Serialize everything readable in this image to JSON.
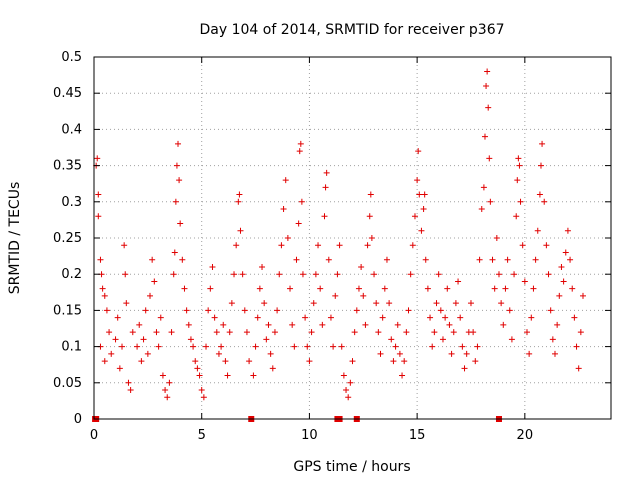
{
  "chart_data": {
    "type": "scatter",
    "title": "Day 104 of 2014, SRMTID for receiver p367",
    "xlabel": "GPS time / hours",
    "ylabel": "SRMTID / TECUs",
    "xlim": [
      0,
      24
    ],
    "ylim": [
      0,
      0.5
    ],
    "xticks": [
      0,
      5,
      10,
      15,
      20
    ],
    "yticks": [
      0,
      0.05,
      0.1,
      0.15,
      0.2,
      0.25,
      0.3,
      0.35,
      0.4,
      0.45,
      0.5
    ],
    "ytick_labels": [
      "0",
      "0.05",
      "0.1",
      "0.15",
      "0.2",
      "0.25",
      "0.3",
      "0.35",
      "0.4",
      "0.45",
      "0.5"
    ],
    "grid": true,
    "marker": "+",
    "color": "#e00000",
    "zero_points": [
      0.05,
      0.1,
      7.3,
      11.3,
      11.4,
      12.2,
      18.8
    ],
    "series": [
      {
        "name": "SRMTID",
        "points": [
          [
            0.1,
            0.35
          ],
          [
            0.15,
            0.36
          ],
          [
            0.2,
            0.31
          ],
          [
            0.2,
            0.28
          ],
          [
            0.3,
            0.22
          ],
          [
            0.35,
            0.2
          ],
          [
            0.4,
            0.18
          ],
          [
            0.5,
            0.17
          ],
          [
            0.6,
            0.15
          ],
          [
            0.3,
            0.1
          ],
          [
            0.5,
            0.08
          ],
          [
            0.7,
            0.12
          ],
          [
            0.8,
            0.09
          ],
          [
            1.0,
            0.11
          ],
          [
            1.1,
            0.14
          ],
          [
            1.2,
            0.07
          ],
          [
            1.3,
            0.1
          ],
          [
            1.4,
            0.24
          ],
          [
            1.45,
            0.2
          ],
          [
            1.5,
            0.16
          ],
          [
            1.6,
            0.05
          ],
          [
            1.7,
            0.04
          ],
          [
            1.8,
            0.12
          ],
          [
            2.0,
            0.1
          ],
          [
            2.1,
            0.13
          ],
          [
            2.2,
            0.08
          ],
          [
            2.3,
            0.11
          ],
          [
            2.4,
            0.15
          ],
          [
            2.5,
            0.09
          ],
          [
            2.6,
            0.17
          ],
          [
            2.7,
            0.22
          ],
          [
            2.8,
            0.19
          ],
          [
            2.9,
            0.12
          ],
          [
            3.0,
            0.1
          ],
          [
            3.1,
            0.14
          ],
          [
            3.2,
            0.06
          ],
          [
            3.3,
            0.04
          ],
          [
            3.4,
            0.03
          ],
          [
            3.5,
            0.05
          ],
          [
            3.6,
            0.12
          ],
          [
            3.7,
            0.2
          ],
          [
            3.75,
            0.23
          ],
          [
            3.8,
            0.3
          ],
          [
            3.85,
            0.35
          ],
          [
            3.9,
            0.38
          ],
          [
            3.95,
            0.33
          ],
          [
            4.0,
            0.27
          ],
          [
            4.1,
            0.22
          ],
          [
            4.2,
            0.18
          ],
          [
            4.3,
            0.15
          ],
          [
            4.4,
            0.13
          ],
          [
            4.5,
            0.11
          ],
          [
            4.6,
            0.1
          ],
          [
            4.7,
            0.08
          ],
          [
            4.8,
            0.07
          ],
          [
            4.9,
            0.06
          ],
          [
            5.0,
            0.04
          ],
          [
            5.1,
            0.03
          ],
          [
            5.2,
            0.1
          ],
          [
            5.3,
            0.15
          ],
          [
            5.4,
            0.18
          ],
          [
            5.5,
            0.21
          ],
          [
            5.6,
            0.14
          ],
          [
            5.7,
            0.12
          ],
          [
            5.8,
            0.09
          ],
          [
            5.9,
            0.1
          ],
          [
            6.0,
            0.13
          ],
          [
            6.1,
            0.08
          ],
          [
            6.2,
            0.06
          ],
          [
            6.3,
            0.12
          ],
          [
            6.4,
            0.16
          ],
          [
            6.5,
            0.2
          ],
          [
            6.6,
            0.24
          ],
          [
            6.7,
            0.3
          ],
          [
            6.75,
            0.31
          ],
          [
            6.8,
            0.26
          ],
          [
            6.9,
            0.2
          ],
          [
            7.0,
            0.15
          ],
          [
            7.1,
            0.12
          ],
          [
            7.2,
            0.08
          ],
          [
            7.4,
            0.06
          ],
          [
            7.5,
            0.1
          ],
          [
            7.6,
            0.14
          ],
          [
            7.7,
            0.18
          ],
          [
            7.8,
            0.21
          ],
          [
            7.9,
            0.16
          ],
          [
            8.0,
            0.11
          ],
          [
            8.1,
            0.13
          ],
          [
            8.2,
            0.09
          ],
          [
            8.3,
            0.07
          ],
          [
            8.4,
            0.12
          ],
          [
            8.5,
            0.15
          ],
          [
            8.6,
            0.2
          ],
          [
            8.7,
            0.24
          ],
          [
            8.8,
            0.29
          ],
          [
            8.9,
            0.33
          ],
          [
            9.0,
            0.25
          ],
          [
            9.1,
            0.18
          ],
          [
            9.2,
            0.13
          ],
          [
            9.3,
            0.1
          ],
          [
            9.4,
            0.22
          ],
          [
            9.5,
            0.27
          ],
          [
            9.55,
            0.37
          ],
          [
            9.6,
            0.38
          ],
          [
            9.65,
            0.3
          ],
          [
            9.7,
            0.2
          ],
          [
            9.8,
            0.14
          ],
          [
            9.9,
            0.1
          ],
          [
            10.0,
            0.08
          ],
          [
            10.1,
            0.12
          ],
          [
            10.2,
            0.16
          ],
          [
            10.3,
            0.2
          ],
          [
            10.4,
            0.24
          ],
          [
            10.5,
            0.18
          ],
          [
            10.6,
            0.13
          ],
          [
            10.7,
            0.28
          ],
          [
            10.75,
            0.32
          ],
          [
            10.8,
            0.34
          ],
          [
            10.9,
            0.22
          ],
          [
            11.0,
            0.14
          ],
          [
            11.1,
            0.1
          ],
          [
            11.2,
            0.17
          ],
          [
            11.3,
            0.2
          ],
          [
            11.4,
            0.24
          ],
          [
            11.5,
            0.1
          ],
          [
            11.6,
            0.06
          ],
          [
            11.7,
            0.04
          ],
          [
            11.8,
            0.03
          ],
          [
            11.9,
            0.05
          ],
          [
            12.0,
            0.08
          ],
          [
            12.1,
            0.12
          ],
          [
            12.2,
            0.15
          ],
          [
            12.3,
            0.18
          ],
          [
            12.4,
            0.21
          ],
          [
            12.5,
            0.17
          ],
          [
            12.6,
            0.13
          ],
          [
            12.7,
            0.24
          ],
          [
            12.8,
            0.28
          ],
          [
            12.85,
            0.31
          ],
          [
            12.9,
            0.25
          ],
          [
            13.0,
            0.2
          ],
          [
            13.1,
            0.16
          ],
          [
            13.2,
            0.12
          ],
          [
            13.3,
            0.09
          ],
          [
            13.4,
            0.14
          ],
          [
            13.5,
            0.18
          ],
          [
            13.6,
            0.22
          ],
          [
            13.7,
            0.16
          ],
          [
            13.8,
            0.11
          ],
          [
            13.9,
            0.08
          ],
          [
            14.0,
            0.1
          ],
          [
            14.1,
            0.13
          ],
          [
            14.2,
            0.09
          ],
          [
            14.3,
            0.06
          ],
          [
            14.4,
            0.08
          ],
          [
            14.5,
            0.12
          ],
          [
            14.6,
            0.15
          ],
          [
            14.7,
            0.2
          ],
          [
            14.8,
            0.24
          ],
          [
            14.9,
            0.28
          ],
          [
            15.0,
            0.33
          ],
          [
            15.05,
            0.37
          ],
          [
            15.1,
            0.31
          ],
          [
            15.2,
            0.26
          ],
          [
            15.3,
            0.29
          ],
          [
            15.35,
            0.31
          ],
          [
            15.4,
            0.22
          ],
          [
            15.5,
            0.18
          ],
          [
            15.6,
            0.14
          ],
          [
            15.7,
            0.1
          ],
          [
            15.8,
            0.12
          ],
          [
            15.9,
            0.16
          ],
          [
            16.0,
            0.2
          ],
          [
            16.1,
            0.15
          ],
          [
            16.2,
            0.11
          ],
          [
            16.3,
            0.14
          ],
          [
            16.4,
            0.18
          ],
          [
            16.5,
            0.13
          ],
          [
            16.6,
            0.09
          ],
          [
            16.7,
            0.12
          ],
          [
            16.8,
            0.16
          ],
          [
            16.9,
            0.19
          ],
          [
            17.0,
            0.14
          ],
          [
            17.1,
            0.1
          ],
          [
            17.2,
            0.07
          ],
          [
            17.3,
            0.09
          ],
          [
            17.4,
            0.12
          ],
          [
            17.5,
            0.16
          ],
          [
            17.6,
            0.12
          ],
          [
            17.7,
            0.08
          ],
          [
            17.8,
            0.1
          ],
          [
            17.9,
            0.22
          ],
          [
            18.0,
            0.29
          ],
          [
            18.1,
            0.32
          ],
          [
            18.15,
            0.39
          ],
          [
            18.2,
            0.46
          ],
          [
            18.25,
            0.48
          ],
          [
            18.3,
            0.43
          ],
          [
            18.35,
            0.36
          ],
          [
            18.4,
            0.3
          ],
          [
            18.5,
            0.22
          ],
          [
            18.6,
            0.18
          ],
          [
            18.7,
            0.25
          ],
          [
            18.8,
            0.2
          ],
          [
            18.9,
            0.16
          ],
          [
            19.0,
            0.13
          ],
          [
            19.1,
            0.18
          ],
          [
            19.2,
            0.22
          ],
          [
            19.3,
            0.15
          ],
          [
            19.4,
            0.11
          ],
          [
            19.5,
            0.2
          ],
          [
            19.6,
            0.28
          ],
          [
            19.65,
            0.33
          ],
          [
            19.7,
            0.36
          ],
          [
            19.75,
            0.35
          ],
          [
            19.8,
            0.3
          ],
          [
            19.9,
            0.24
          ],
          [
            20.0,
            0.19
          ],
          [
            20.1,
            0.12
          ],
          [
            20.2,
            0.09
          ],
          [
            20.3,
            0.14
          ],
          [
            20.4,
            0.18
          ],
          [
            20.5,
            0.22
          ],
          [
            20.6,
            0.26
          ],
          [
            20.7,
            0.31
          ],
          [
            20.75,
            0.35
          ],
          [
            20.8,
            0.38
          ],
          [
            20.9,
            0.3
          ],
          [
            21.0,
            0.24
          ],
          [
            21.1,
            0.2
          ],
          [
            21.2,
            0.15
          ],
          [
            21.3,
            0.11
          ],
          [
            21.4,
            0.09
          ],
          [
            21.5,
            0.13
          ],
          [
            21.6,
            0.17
          ],
          [
            21.7,
            0.21
          ],
          [
            21.8,
            0.19
          ],
          [
            21.9,
            0.23
          ],
          [
            22.0,
            0.26
          ],
          [
            22.1,
            0.22
          ],
          [
            22.2,
            0.18
          ],
          [
            22.3,
            0.14
          ],
          [
            22.4,
            0.1
          ],
          [
            22.5,
            0.07
          ],
          [
            22.6,
            0.12
          ],
          [
            22.7,
            0.17
          ]
        ]
      }
    ]
  }
}
